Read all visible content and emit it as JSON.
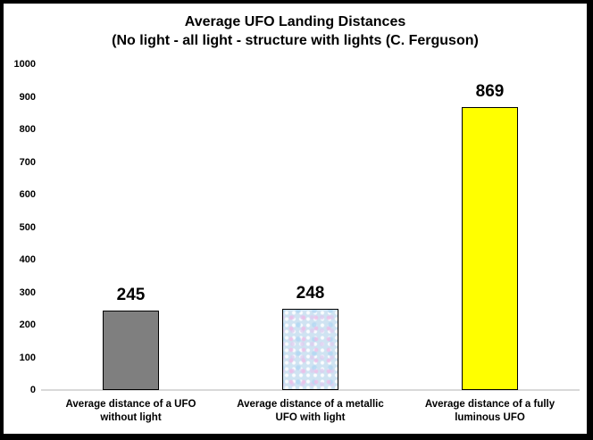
{
  "frame": {
    "background": "#ffffff",
    "border_color": "#000000"
  },
  "chart_data": {
    "type": "bar",
    "title": "Average UFO Landing Distances",
    "subtitle": "(No light - all light - structure with lights (C. Ferguson)",
    "categories": [
      "Average distance of a UFO without light",
      "Average distance of a metallic UFO with light",
      "Average distance of a fully luminous UFO"
    ],
    "category_lines": [
      [
        "Average distance of a UFO",
        "without light"
      ],
      [
        "Average distance of a metallic",
        "UFO with light"
      ],
      [
        "Average distance of a fully",
        "luminous UFO"
      ]
    ],
    "values": [
      245,
      248,
      869
    ],
    "data_labels": [
      "245",
      "248",
      "869"
    ],
    "bar_fills": [
      "#7f7f7f",
      "blue-tissue-texture",
      "#ffff00"
    ],
    "bar_border_color": "#000000",
    "xlabel": "",
    "ylabel": "",
    "ylim": [
      0,
      1000
    ],
    "ytick_step": 100,
    "ytick_labels": [
      "0",
      "100",
      "200",
      "300",
      "400",
      "500",
      "600",
      "700",
      "800",
      "900",
      "1000"
    ],
    "axis_line_color": "#d9d9d9",
    "grid": false,
    "legend": false
  }
}
